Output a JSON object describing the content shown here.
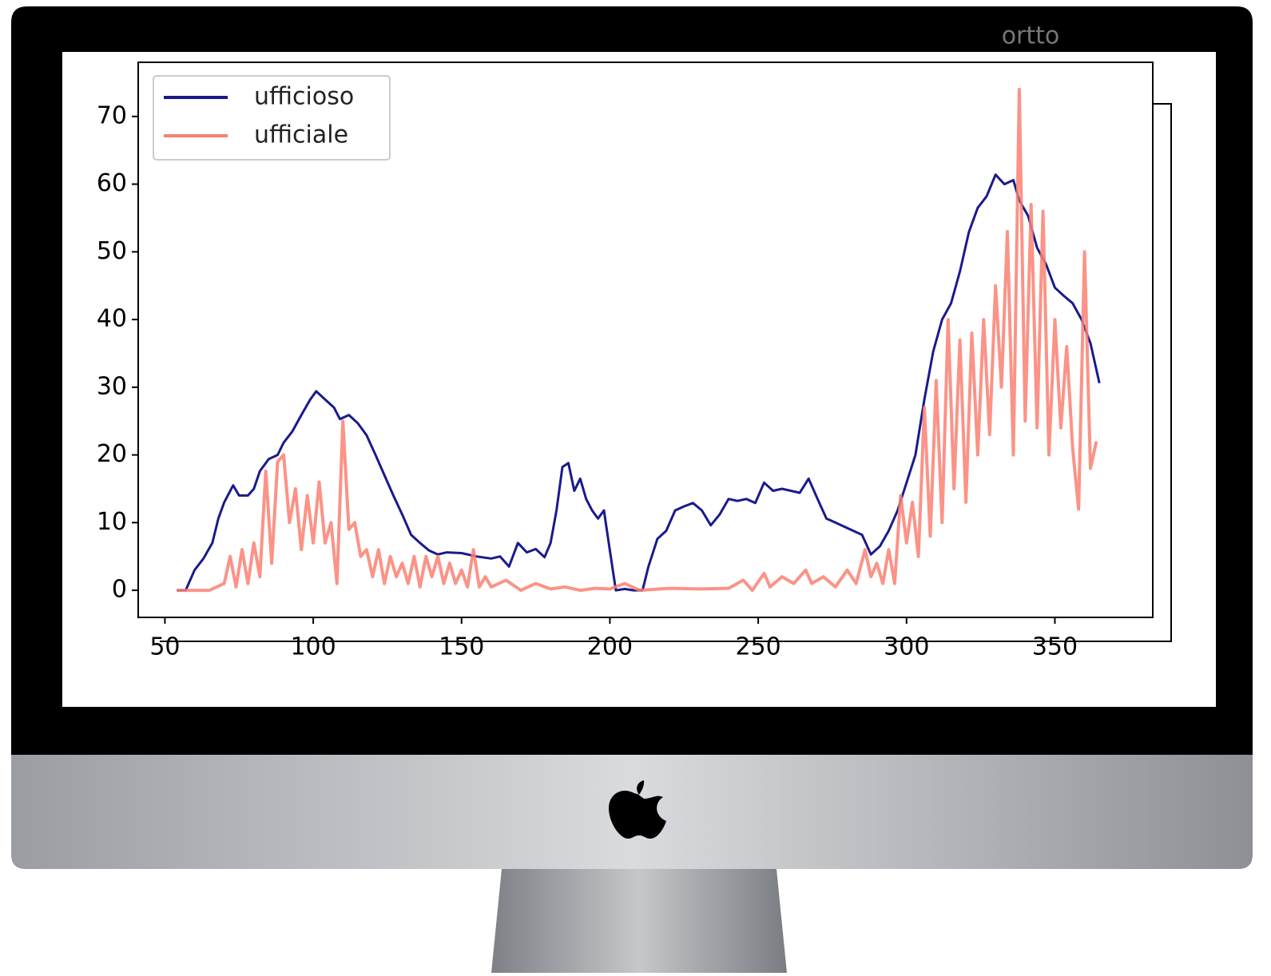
{
  "chart_data": {
    "type": "line",
    "title": "ortto",
    "xlim": [
      41,
      383
    ],
    "ylim": [
      -4,
      78
    ],
    "xticks": [
      50,
      100,
      150,
      200,
      250,
      300,
      350
    ],
    "yticks": [
      0,
      10,
      20,
      30,
      40,
      50,
      60,
      70
    ],
    "legend": "upper left",
    "series": [
      {
        "name": "ufficioso",
        "color": "#1a1a8c",
        "x": [
          54,
          57,
          60,
          63,
          66,
          68,
          70,
          73,
          75,
          78,
          80,
          82,
          85,
          88,
          90,
          93,
          96,
          99,
          101,
          104,
          107,
          109,
          112,
          115,
          118,
          121,
          124,
          127,
          130,
          133,
          136,
          139,
          142,
          145,
          150,
          155,
          160,
          163,
          166,
          169,
          172,
          175,
          178,
          180,
          182,
          184,
          186,
          188,
          190,
          192,
          194,
          196,
          198,
          200,
          202,
          205,
          208,
          211,
          213,
          216,
          219,
          222,
          225,
          228,
          231,
          234,
          237,
          240,
          243,
          246,
          249,
          252,
          255,
          258,
          261,
          264,
          267,
          270,
          273,
          276,
          279,
          282,
          285,
          288,
          291,
          294,
          297,
          300,
          303,
          306,
          309,
          312,
          315,
          318,
          321,
          324,
          327,
          330,
          333,
          336,
          338,
          341,
          344,
          347,
          350,
          353,
          356,
          359,
          362,
          365
        ],
        "values": [
          0,
          0,
          3,
          4.7,
          7,
          10.6,
          13,
          15.5,
          14,
          14,
          15,
          17.6,
          19.4,
          20,
          21.8,
          23.5,
          25.9,
          28.2,
          29.4,
          28.2,
          27,
          25.3,
          25.9,
          24.7,
          22.9,
          20,
          17,
          14,
          11.2,
          8.2,
          7,
          5.9,
          5.3,
          5.6,
          5.5,
          5,
          4.7,
          5,
          3.5,
          7,
          5.6,
          6.1,
          4.9,
          7,
          11.8,
          18.2,
          18.8,
          14.7,
          16.5,
          13.5,
          11.8,
          10.6,
          11.8,
          5.9,
          0,
          0.2,
          0,
          0,
          3.5,
          7.6,
          8.8,
          11.8,
          12.4,
          12.9,
          11.8,
          9.6,
          11.2,
          13.5,
          13.2,
          13.5,
          12.9,
          15.9,
          14.7,
          15,
          14.7,
          14.4,
          16.5,
          13.5,
          10.6,
          10,
          9.4,
          8.8,
          8.2,
          5.3,
          6.5,
          8.8,
          11.8,
          15.9,
          20,
          28.2,
          35.3,
          40,
          42.4,
          47.1,
          52.9,
          56.5,
          58.2,
          61.4,
          60,
          60.6,
          57.6,
          55.3,
          50.6,
          48.2,
          44.7,
          43.5,
          42.4,
          40,
          36.5,
          30.6
        ]
      },
      {
        "name": "ufficiale",
        "color": "#fa8072",
        "x": [
          54,
          60,
          65,
          70,
          72,
          74,
          76,
          78,
          80,
          82,
          84,
          86,
          88,
          90,
          92,
          94,
          96,
          98,
          100,
          102,
          104,
          106,
          108,
          110,
          112,
          114,
          116,
          118,
          120,
          122,
          124,
          126,
          128,
          130,
          132,
          134,
          136,
          138,
          140,
          142,
          144,
          146,
          148,
          150,
          152,
          154,
          156,
          158,
          160,
          165,
          170,
          175,
          180,
          185,
          190,
          195,
          200,
          205,
          210,
          220,
          230,
          240,
          245,
          248,
          252,
          254,
          258,
          262,
          266,
          268,
          272,
          276,
          280,
          283,
          286,
          288,
          290,
          292,
          294,
          296,
          298,
          300,
          302,
          304,
          306,
          308,
          310,
          312,
          314,
          316,
          318,
          320,
          322,
          324,
          326,
          328,
          330,
          332,
          334,
          336,
          338,
          340,
          342,
          344,
          346,
          348,
          350,
          352,
          354,
          356,
          358,
          360,
          362,
          364
        ],
        "values": [
          0,
          0,
          0,
          1,
          5,
          0.5,
          6,
          1,
          7,
          2,
          17.6,
          4,
          19,
          20,
          10,
          15,
          6,
          14,
          7,
          16,
          7,
          10,
          1,
          25,
          9,
          10,
          5,
          6,
          2,
          6,
          1,
          5,
          2,
          4,
          1,
          5,
          0.5,
          5,
          2,
          5,
          1,
          4,
          1,
          3,
          0.5,
          6,
          0.5,
          2,
          0.5,
          1.5,
          0,
          1,
          0.2,
          0.5,
          0,
          0.3,
          0.2,
          1,
          0,
          0.3,
          0.2,
          0.3,
          1.5,
          0,
          2.5,
          0.5,
          2,
          1,
          3,
          1,
          2,
          0.5,
          3,
          1,
          6,
          2,
          4,
          1,
          6,
          1,
          14,
          7,
          13,
          5,
          27,
          8,
          31,
          10,
          40,
          15,
          37,
          13,
          38,
          20,
          40,
          23,
          45,
          30,
          53,
          20,
          74,
          25,
          57,
          24,
          56,
          20,
          40,
          24,
          36,
          21,
          12,
          50,
          18,
          22
        ]
      }
    ]
  }
}
